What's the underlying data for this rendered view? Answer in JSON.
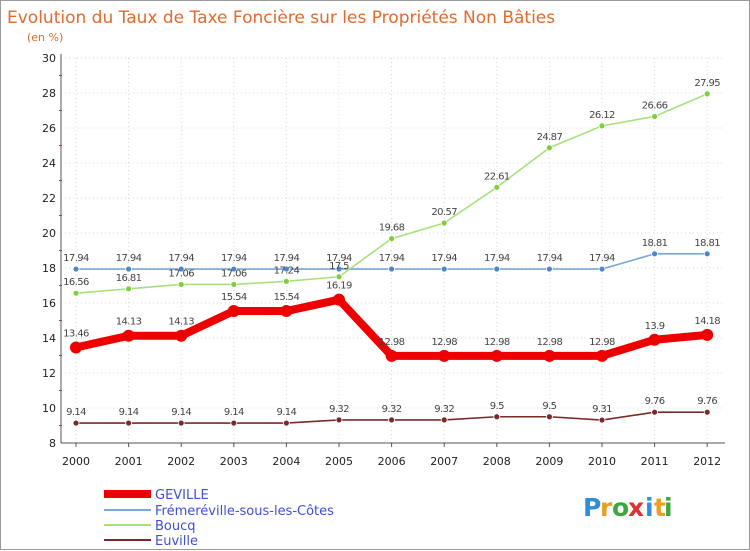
{
  "chart_data": {
    "type": "line",
    "title": "Evolution du Taux de Taxe Foncière sur les Propriétés Non Bâties",
    "subtitle": "(en %)",
    "xlabel": "",
    "ylabel": "",
    "ylim": [
      8,
      30
    ],
    "yticks": [
      8,
      10,
      12,
      14,
      16,
      18,
      20,
      22,
      24,
      26,
      28,
      30
    ],
    "categories": [
      "2000",
      "2001",
      "2002",
      "2003",
      "2004",
      "2005",
      "2006",
      "2007",
      "2008",
      "2009",
      "2010",
      "2011",
      "2012"
    ],
    "series": [
      {
        "name": "GEVILLE",
        "color": "#ee0000",
        "emphasis": true,
        "values": [
          13.46,
          14.13,
          14.13,
          15.54,
          15.54,
          16.19,
          12.98,
          12.98,
          12.98,
          12.98,
          12.98,
          13.9,
          14.18
        ],
        "labels": [
          "13.46",
          "14.13",
          "14.13",
          "15.54",
          "15.54",
          "16.19",
          "12.98",
          "12.98",
          "12.98",
          "12.98",
          "12.98",
          "13.9",
          "14.18"
        ]
      },
      {
        "name": "Frémeréville-sous-les-Côtes",
        "color": "#7aa8d6",
        "marker": "#4a88c8",
        "values": [
          17.94,
          17.94,
          17.94,
          17.94,
          17.94,
          17.94,
          17.94,
          17.94,
          17.94,
          17.94,
          17.94,
          18.81,
          18.81
        ],
        "labels": [
          "17.94",
          "17.94",
          "17.94",
          "17.94",
          "17.94",
          "17.94",
          "17.94",
          "17.94",
          "17.94",
          "17.94",
          "17.94",
          "18.81",
          "18.81"
        ]
      },
      {
        "name": "Boucq",
        "color": "#a8e07a",
        "marker": "#7fcf3a",
        "values": [
          16.56,
          16.81,
          17.06,
          17.06,
          17.24,
          17.5,
          19.68,
          20.57,
          22.61,
          24.87,
          26.12,
          26.66,
          27.95
        ],
        "labels": [
          "16.56",
          "16.81",
          "17.06",
          "17.06",
          "17.24",
          "17.5",
          "19.68",
          "20.57",
          "22.61",
          "24.87",
          "26.12",
          "26.66",
          "27.95"
        ]
      },
      {
        "name": "Euville",
        "color": "#7a2a2a",
        "marker": "#7a2a2a",
        "values": [
          9.14,
          9.14,
          9.14,
          9.14,
          9.14,
          9.32,
          9.32,
          9.32,
          9.5,
          9.5,
          9.31,
          9.76,
          9.76
        ],
        "labels": [
          "9.14",
          "9.14",
          "9.14",
          "9.14",
          "9.14",
          "9.32",
          "9.32",
          "9.32",
          "9.5",
          "9.5",
          "9.31",
          "9.76",
          "9.76"
        ]
      }
    ],
    "legend": [
      "GEVILLE",
      "Frémeréville-sous-les-Côtes",
      "Boucq",
      "Euville"
    ]
  },
  "logo": {
    "text": "Proxiti",
    "letters": [
      "P",
      "r",
      "o",
      "x",
      "i",
      "t",
      "i"
    ],
    "colors": [
      "#2f8fd6",
      "#e8a020",
      "#3aa83a",
      "#e23030",
      "#2f8fd6",
      "#e8a020",
      "#3aa83a"
    ]
  }
}
